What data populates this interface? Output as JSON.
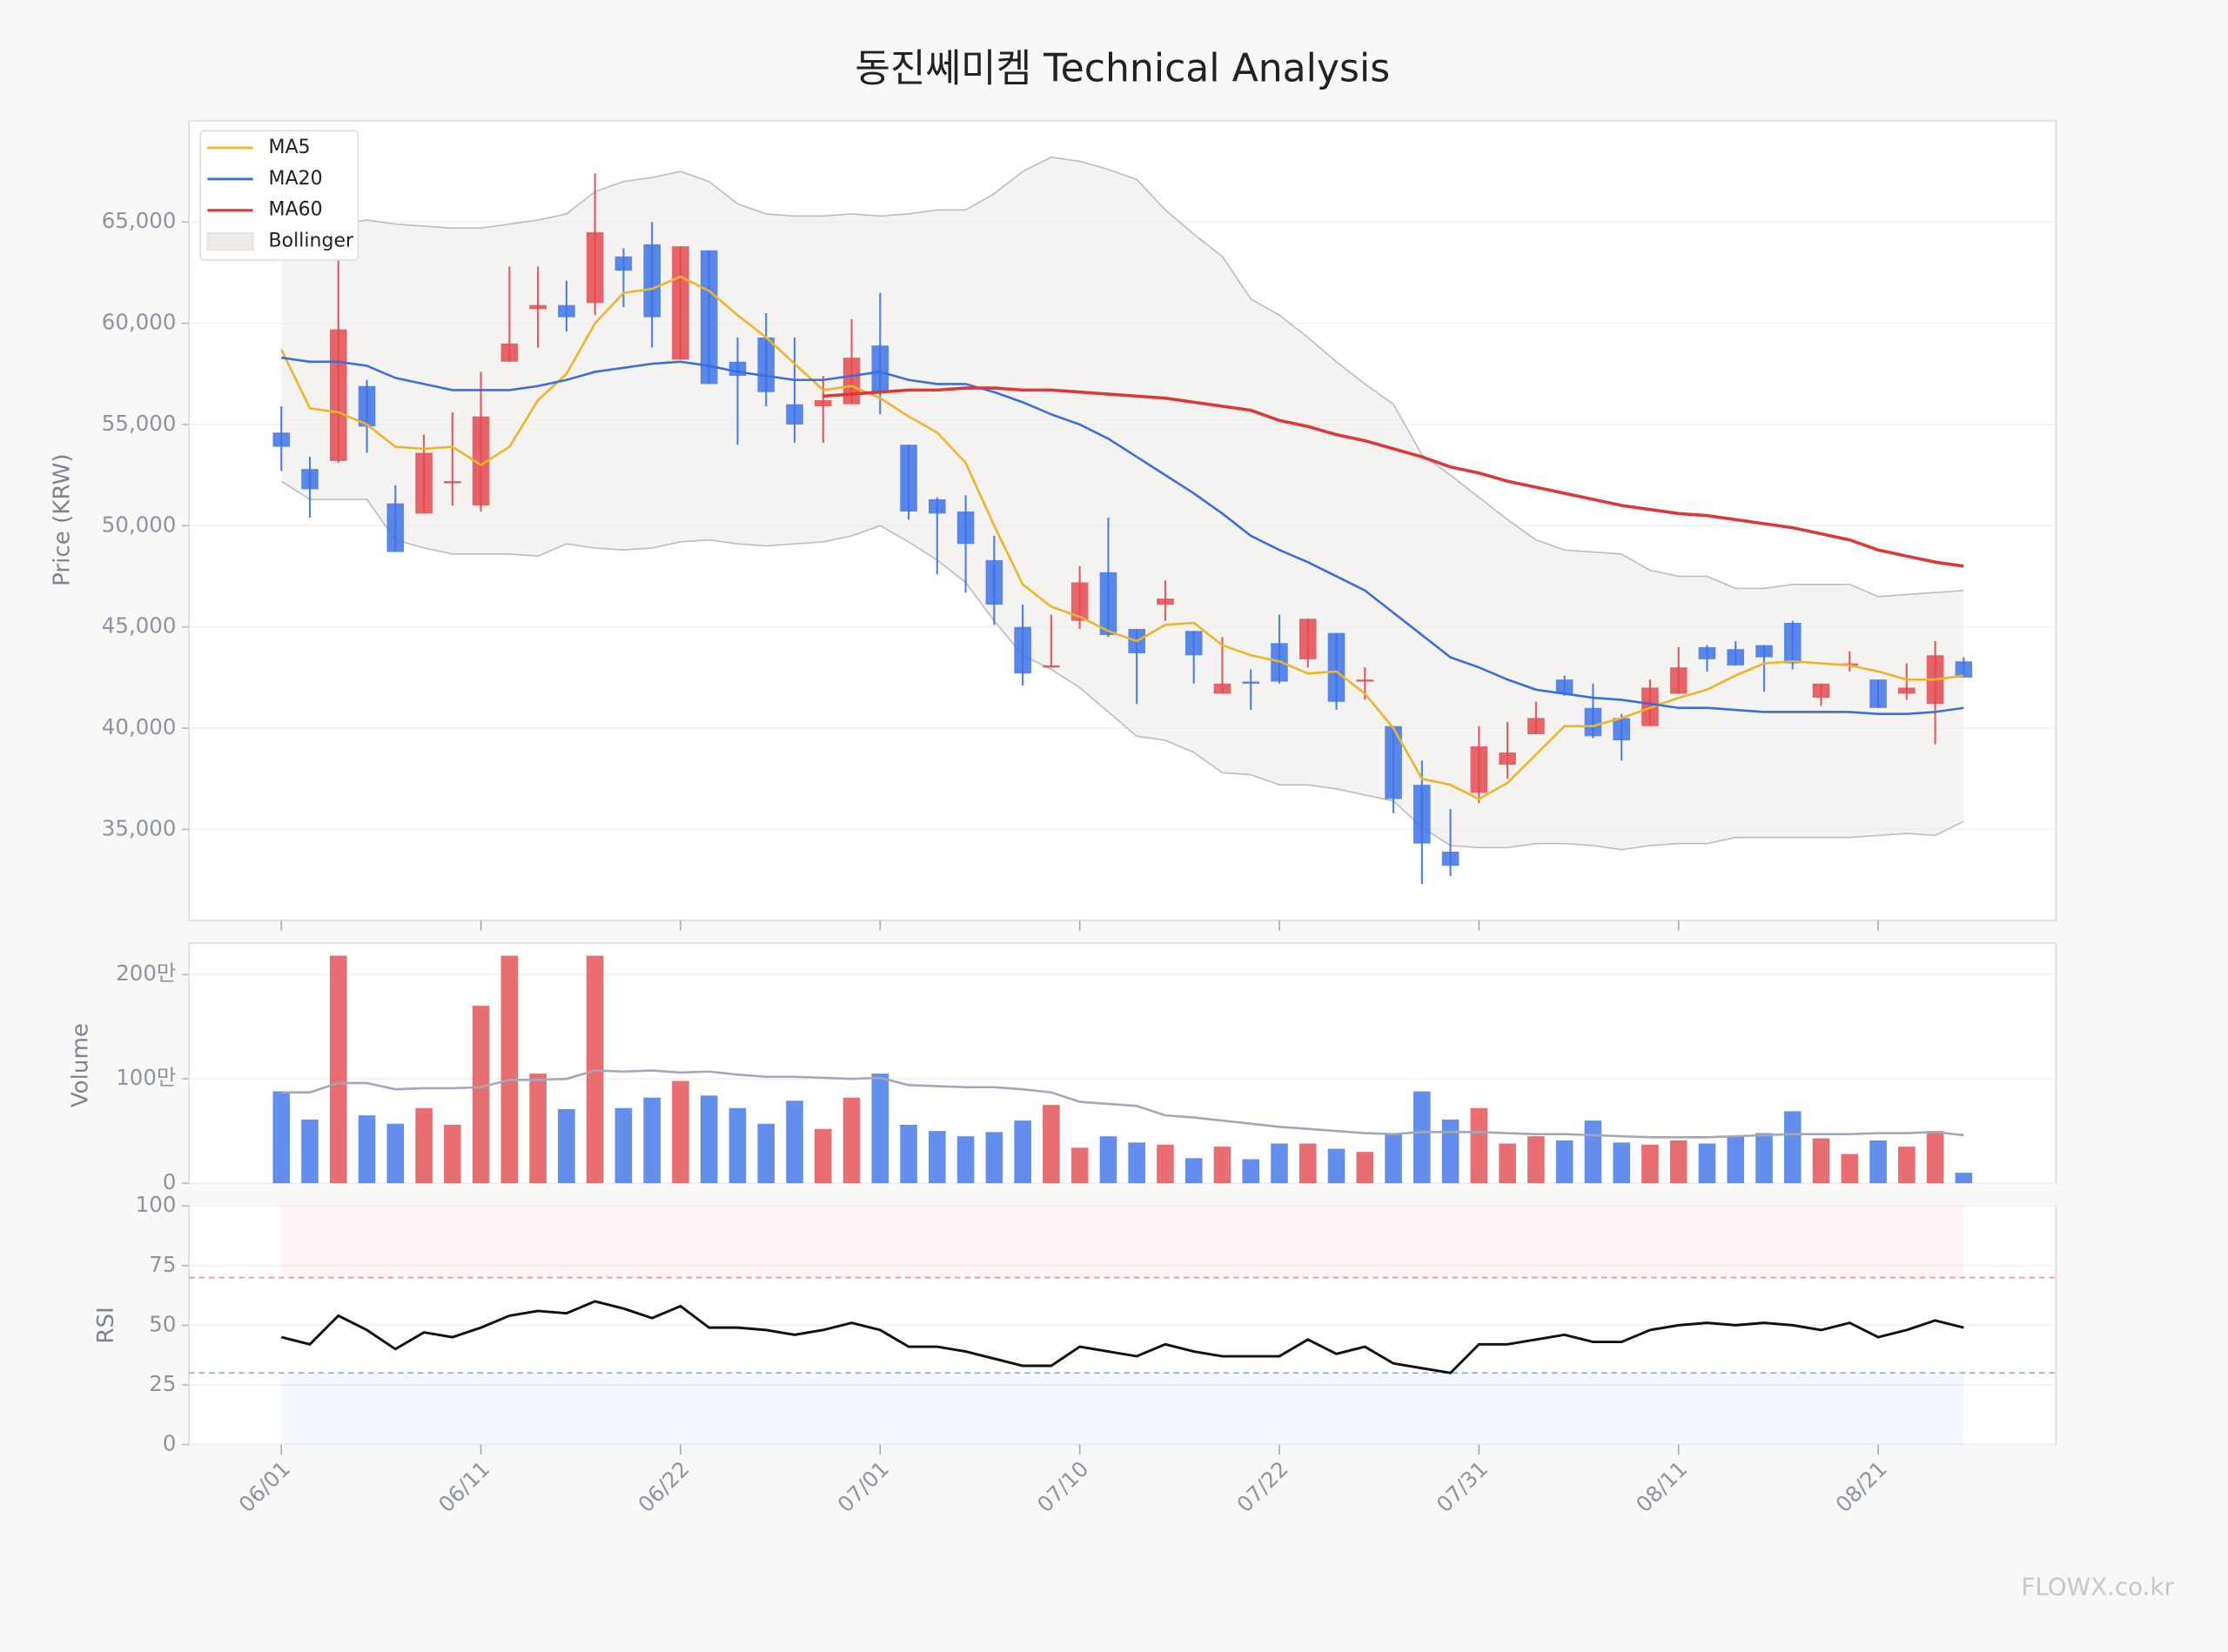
{
  "chart_data": [
    {
      "type": "candlestick",
      "title": "동진쎄미켐 Technical Analysis",
      "y_label": "Price (KRW)",
      "legend": "upper left",
      "grid": true,
      "up_color": "#e34a4f",
      "down_color": "#3d72e8",
      "open": [
        54600,
        52800,
        53200,
        56900,
        51100,
        50600,
        52100,
        51000,
        58100,
        60700,
        60900,
        61000,
        63300,
        63900,
        58200,
        63600,
        58100,
        59300,
        56000,
        55900,
        56000,
        58900,
        54000,
        51300,
        50700,
        48300,
        45000,
        43000,
        45300,
        47700,
        44900,
        46100,
        44800,
        41700,
        42300,
        44200,
        43400,
        44700,
        42300,
        40100,
        37200,
        33900,
        36800,
        38200,
        39700,
        42400,
        41000,
        40500,
        40100,
        41700,
        44000,
        43900,
        44100,
        45200,
        41500,
        43100,
        42400,
        41700,
        41200,
        43300
      ],
      "high": [
        55900,
        53400,
        64000,
        57200,
        52000,
        54500,
        55600,
        57600,
        62800,
        62800,
        62100,
        67400,
        63700,
        65000,
        63800,
        63600,
        59300,
        60500,
        59300,
        57400,
        60200,
        61500,
        54000,
        51400,
        51500,
        49500,
        46100,
        45600,
        48000,
        50400,
        44900,
        47300,
        44800,
        44500,
        42900,
        45600,
        45400,
        44700,
        43000,
        40100,
        38400,
        36000,
        40100,
        40300,
        41300,
        42600,
        42200,
        40700,
        42400,
        44000,
        44100,
        44300,
        44100,
        45300,
        42200,
        43800,
        42400,
        43200,
        44300,
        43500
      ],
      "low": [
        52700,
        50400,
        53100,
        53600,
        48700,
        50600,
        51000,
        50700,
        58100,
        58800,
        59600,
        60400,
        60800,
        58800,
        58200,
        57000,
        54000,
        55900,
        54100,
        54100,
        56000,
        55500,
        50300,
        47600,
        46700,
        45100,
        42100,
        43000,
        44900,
        44500,
        41200,
        45300,
        42200,
        41700,
        40900,
        42200,
        43000,
        40900,
        41400,
        35800,
        32300,
        32700,
        36300,
        37500,
        39700,
        41600,
        39500,
        38400,
        40100,
        41700,
        42800,
        43100,
        41800,
        42900,
        41100,
        42800,
        41000,
        41400,
        39200,
        42500
      ],
      "close": [
        53900,
        51800,
        59700,
        54900,
        48700,
        53600,
        52200,
        55400,
        59000,
        60900,
        60300,
        64500,
        62600,
        60300,
        63800,
        57000,
        57400,
        56600,
        55000,
        56200,
        58300,
        56600,
        50700,
        50600,
        49100,
        46100,
        42700,
        43100,
        47200,
        44600,
        43700,
        46400,
        43600,
        42200,
        42200,
        42300,
        45400,
        41300,
        42400,
        36500,
        34300,
        33200,
        39100,
        38800,
        40500,
        41700,
        39600,
        39400,
        42000,
        43000,
        43400,
        43100,
        43500,
        43200,
        42200,
        43200,
        41000,
        42000,
        43600,
        42500
      ],
      "lines": [
        {
          "name": "MA5",
          "color": "#f0b429",
          "values": [
            58700,
            55800,
            55600,
            55000,
            53900,
            53800,
            53900,
            53000,
            53900,
            56200,
            57500,
            60000,
            61500,
            61700,
            62300,
            61600,
            60400,
            59300,
            58000,
            56700,
            56900,
            56300,
            55400,
            54600,
            53100,
            50000,
            47100,
            46000,
            45500,
            44800,
            44300,
            45100,
            45200,
            44100,
            43600,
            43300,
            42700,
            42800,
            41700,
            40000,
            37500,
            37200,
            36500,
            37300,
            38700,
            40100,
            40100,
            40500,
            41000,
            41500,
            41900,
            42600,
            43200,
            43300,
            43200,
            43100,
            42800,
            42400,
            42400,
            42600
          ]
        },
        {
          "name": "MA20",
          "color": "#3a6fe0",
          "values": [
            58300,
            58100,
            58100,
            57900,
            57300,
            57000,
            56700,
            56700,
            56700,
            56900,
            57200,
            57600,
            57800,
            58000,
            58100,
            57900,
            57600,
            57400,
            57200,
            57200,
            57400,
            57600,
            57200,
            57000,
            57000,
            56600,
            56100,
            55500,
            55000,
            54300,
            53400,
            52500,
            51600,
            50600,
            49500,
            48800,
            48200,
            47500,
            46800,
            45700,
            44600,
            43500,
            43000,
            42400,
            41900,
            41700,
            41500,
            41400,
            41200,
            41000,
            41000,
            40900,
            40800,
            40800,
            40800,
            40800,
            40700,
            40700,
            40800,
            41000
          ]
        },
        {
          "name": "MA60",
          "color": "#dc3838",
          "values": [
            null,
            null,
            null,
            null,
            null,
            null,
            null,
            null,
            null,
            null,
            null,
            null,
            null,
            null,
            null,
            null,
            null,
            null,
            null,
            56400,
            56500,
            56600,
            56700,
            56700,
            56800,
            56800,
            56700,
            56700,
            56600,
            56500,
            56400,
            56300,
            56100,
            55900,
            55700,
            55200,
            54900,
            54500,
            54200,
            53800,
            53400,
            52900,
            52600,
            52200,
            51900,
            51600,
            51300,
            51000,
            50800,
            50600,
            50500,
            50300,
            50100,
            49900,
            49600,
            49300,
            48800,
            48500,
            48200,
            48000
          ]
        }
      ],
      "bands": {
        "name": "Bollinger",
        "color": "#bdbdbd",
        "fill": "#efebe7",
        "upper": [
          65300,
          64700,
          64900,
          65100,
          64900,
          64800,
          64700,
          64700,
          64900,
          65100,
          65400,
          66500,
          67000,
          67200,
          67500,
          67000,
          65900,
          65400,
          65300,
          65300,
          65400,
          65300,
          65400,
          65600,
          65600,
          66400,
          67500,
          68200,
          68000,
          67600,
          67100,
          65600,
          64400,
          63300,
          61200,
          60400,
          59300,
          58100,
          57000,
          56000,
          53500,
          52500,
          51400,
          50300,
          49300,
          48800,
          48700,
          48600,
          47800,
          47500,
          47500,
          46900,
          46900,
          47100,
          47100,
          47100,
          46500,
          46600,
          46700,
          46800
        ],
        "lower": [
          52200,
          51300,
          51300,
          51300,
          49300,
          48900,
          48600,
          48600,
          48600,
          48500,
          49100,
          48900,
          48800,
          48900,
          49200,
          49300,
          49100,
          49000,
          49100,
          49200,
          49500,
          50000,
          49200,
          48300,
          47200,
          45300,
          43600,
          42900,
          42000,
          40800,
          39600,
          39400,
          38800,
          37800,
          37700,
          37200,
          37200,
          37000,
          36700,
          36400,
          35100,
          34200,
          34100,
          34100,
          34300,
          34300,
          34200,
          34000,
          34200,
          34300,
          34300,
          34600,
          34600,
          34600,
          34600,
          34600,
          34700,
          34800,
          34700,
          35400
        ]
      },
      "ylim": [
        30500,
        70000
      ],
      "yticks": [
        {
          "value": 35000,
          "label": "35,000"
        },
        {
          "value": 40000,
          "label": "40,000"
        },
        {
          "value": 45000,
          "label": "45,000"
        },
        {
          "value": 50000,
          "label": "50,000"
        },
        {
          "value": 55000,
          "label": "55,000"
        },
        {
          "value": 60000,
          "label": "60,000"
        },
        {
          "value": 65000,
          "label": "65,000"
        }
      ]
    },
    {
      "type": "bar",
      "y_label": "Volume",
      "grid": true,
      "values": [
        880000,
        610000,
        2180000,
        650000,
        570000,
        720000,
        560000,
        1700000,
        2180000,
        1050000,
        710000,
        2180000,
        720000,
        820000,
        980000,
        840000,
        720000,
        570000,
        790000,
        520000,
        820000,
        1050000,
        560000,
        500000,
        450000,
        490000,
        600000,
        750000,
        340000,
        450000,
        390000,
        370000,
        240000,
        350000,
        230000,
        380000,
        380000,
        330000,
        300000,
        480000,
        880000,
        610000,
        720000,
        380000,
        450000,
        410000,
        600000,
        390000,
        370000,
        410000,
        380000,
        450000,
        480000,
        690000,
        430000,
        280000,
        410000,
        350000,
        500000,
        100000
      ],
      "ma_color": "#a4a7b8",
      "ma_values": [
        870000,
        870000,
        960000,
        960000,
        900000,
        910000,
        910000,
        920000,
        990000,
        990000,
        1000000,
        1080000,
        1070000,
        1080000,
        1060000,
        1070000,
        1040000,
        1020000,
        1020000,
        1010000,
        1000000,
        1010000,
        940000,
        930000,
        920000,
        920000,
        900000,
        870000,
        780000,
        760000,
        740000,
        650000,
        630000,
        600000,
        570000,
        540000,
        520000,
        500000,
        480000,
        470000,
        490000,
        490000,
        490000,
        480000,
        470000,
        470000,
        460000,
        450000,
        440000,
        440000,
        440000,
        450000,
        460000,
        470000,
        470000,
        470000,
        480000,
        480000,
        490000,
        460000
      ],
      "ylim": [
        0,
        2300000
      ],
      "yticks": [
        0,
        {
          "value": 1000000,
          "label": "100만"
        },
        {
          "value": 2000000,
          "label": "200만"
        }
      ]
    },
    {
      "type": "line",
      "y_label": "RSI",
      "color": "#111111",
      "grid": true,
      "categories": [
        "06/01",
        null,
        null,
        null,
        null,
        null,
        null,
        "06/11",
        null,
        null,
        null,
        null,
        null,
        null,
        "06/22",
        null,
        null,
        null,
        null,
        null,
        null,
        "07/01",
        null,
        null,
        null,
        null,
        null,
        null,
        "07/10",
        null,
        null,
        null,
        null,
        null,
        null,
        "07/22",
        null,
        null,
        null,
        null,
        null,
        null,
        "07/31",
        null,
        null,
        null,
        null,
        null,
        null,
        "08/11",
        null,
        null,
        null,
        null,
        null,
        null,
        "08/21",
        null,
        null,
        null
      ],
      "values": [
        45,
        42,
        54,
        48,
        40,
        47,
        45,
        49,
        54,
        56,
        55,
        60,
        57,
        53,
        58,
        49,
        49,
        48,
        46,
        48,
        51,
        48,
        41,
        41,
        39,
        36,
        33,
        33,
        41,
        39,
        37,
        42,
        39,
        37,
        37,
        37,
        44,
        38,
        41,
        34,
        32,
        30,
        42,
        42,
        44,
        46,
        43,
        43,
        48,
        50,
        51,
        50,
        51,
        50,
        48,
        51,
        45,
        48,
        52,
        49
      ],
      "overbought": 70,
      "oversold": 30,
      "overbought_color": "#e8494f",
      "oversold_color": "#4a74e8",
      "ylim": [
        0,
        100
      ],
      "yticks": [
        0,
        25,
        50,
        75,
        100
      ]
    }
  ],
  "watermark": "FLOWX.co.kr"
}
